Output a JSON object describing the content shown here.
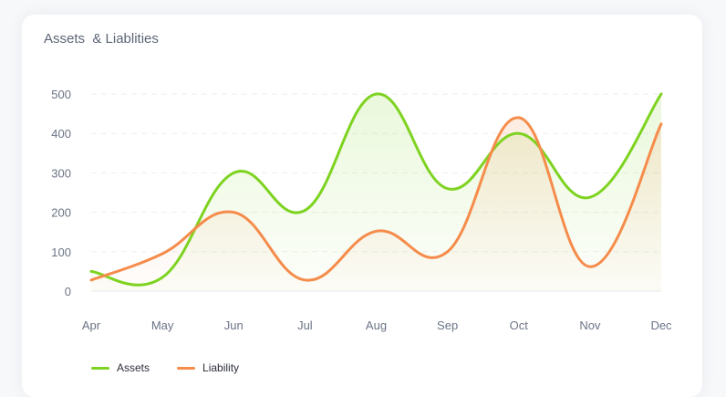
{
  "card": {
    "title": "Assets  & Liablities"
  },
  "chart_data": {
    "type": "line",
    "title": "Assets  & Liablities",
    "categories": [
      "Apr",
      "May",
      "Jun",
      "Jul",
      "Aug",
      "Sep",
      "Oct",
      "Nov",
      "Dec"
    ],
    "ylim": [
      0,
      500
    ],
    "yticks": [
      0,
      100,
      200,
      300,
      400,
      500
    ],
    "grid": true,
    "smooth": true,
    "legend_position": "bottom-left",
    "series": [
      {
        "name": "Assets",
        "color": "#7ed321",
        "values": [
          50,
          35,
          300,
          205,
          500,
          260,
          400,
          238,
          500
        ]
      },
      {
        "name": "Liability",
        "color": "#f58c4b",
        "values": [
          28,
          95,
          200,
          28,
          152,
          100,
          440,
          62,
          424
        ]
      }
    ]
  }
}
